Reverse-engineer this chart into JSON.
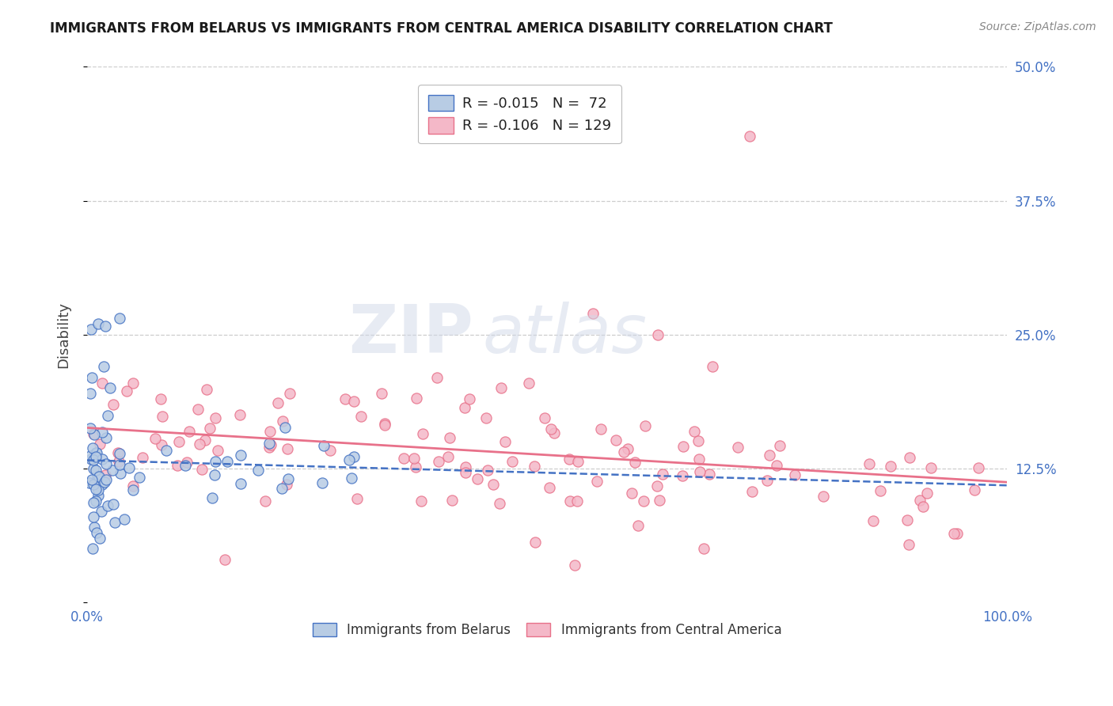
{
  "title": "IMMIGRANTS FROM BELARUS VS IMMIGRANTS FROM CENTRAL AMERICA DISABILITY CORRELATION CHART",
  "source": "Source: ZipAtlas.com",
  "ylabel": "Disability",
  "xlim": [
    0,
    100
  ],
  "ylim": [
    0,
    50
  ],
  "yticks": [
    0,
    12.5,
    25.0,
    37.5,
    50.0
  ],
  "xticks": [
    0,
    100
  ],
  "xtick_labels": [
    "0.0%",
    "100.0%"
  ],
  "ytick_labels": [
    "",
    "12.5%",
    "25.0%",
    "37.5%",
    "50.0%"
  ],
  "series_belarus": {
    "name": "Immigrants from Belarus",
    "color": "#4472c4",
    "face_color": "#b8cce4",
    "R": -0.015,
    "N": 72
  },
  "series_central_america": {
    "name": "Immigrants from Central America",
    "color": "#e8718a",
    "face_color": "#f4b8c8",
    "R": -0.106,
    "N": 129
  },
  "watermark_text": "ZIP",
  "watermark_text2": "atlas",
  "background_color": "#ffffff",
  "grid_color": "#c8c8c8",
  "title_color": "#1a1a1a",
  "axis_label_color": "#444444",
  "tick_color": "#4472c4",
  "legend_r_color": "#1155cc",
  "legend_n_color": "#1155cc"
}
